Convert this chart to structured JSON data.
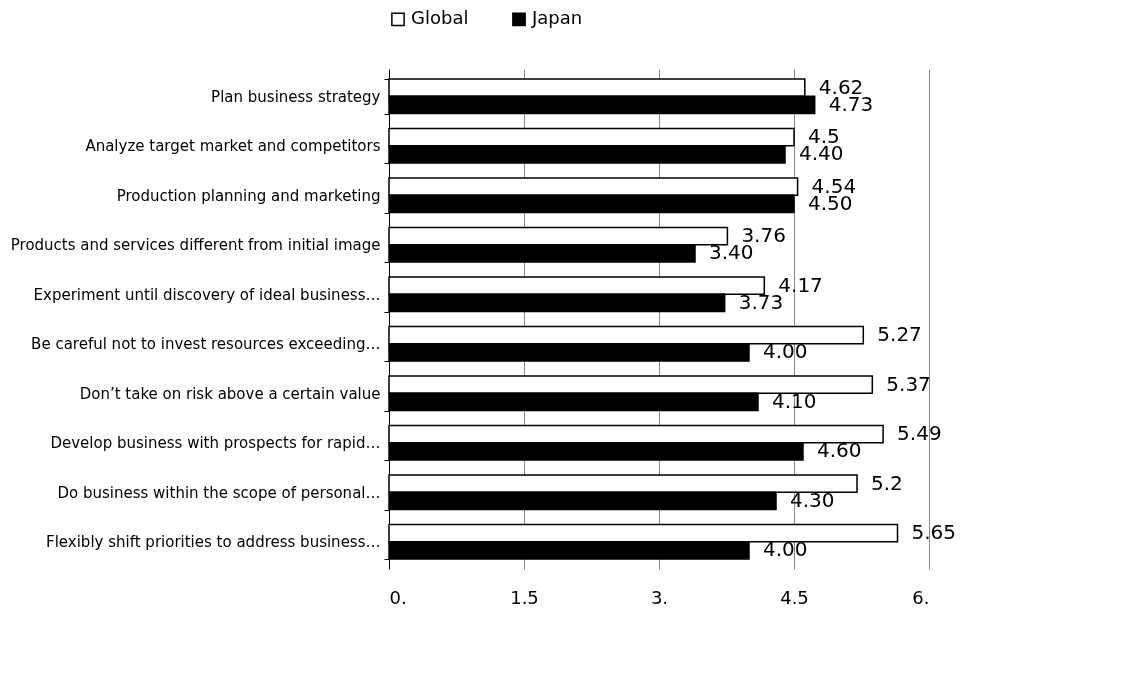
{
  "chart_data": {
    "type": "bar",
    "orientation": "horizontal",
    "categories": [
      "Plan business strategy",
      "Analyze target market and competitors",
      "Production planning and marketing",
      "Products and services different from initial image",
      "Experiment until discovery of ideal business…",
      "Be careful not to invest resources exceeding…",
      "Don’t take on risk above a certain value",
      "Develop business with prospects for rapid…",
      "Do business within the scope of personal…",
      "Flexibly shift priorities to address business…"
    ],
    "series": [
      {
        "name": "Global",
        "color": "#ffffff",
        "values": [
          4.62,
          4.5,
          4.54,
          3.76,
          4.17,
          5.27,
          5.37,
          5.49,
          5.2,
          5.65
        ],
        "value_labels": [
          "4.62",
          "4.5",
          "4.54",
          "3.76",
          "4.17",
          "5.27",
          "5.37",
          "5.49",
          "5.2",
          "5.65"
        ]
      },
      {
        "name": "Japan",
        "color": "#000000",
        "values": [
          4.73,
          4.4,
          4.5,
          3.4,
          3.73,
          4.0,
          4.1,
          4.6,
          4.3,
          4.0
        ],
        "value_labels": [
          "4.73",
          "4.40",
          "4.50",
          "3.40",
          "3.73",
          "4.00",
          "4.10",
          "4.60",
          "4.30",
          "4.00"
        ]
      }
    ],
    "xlim": [
      0,
      6
    ],
    "xticks": [
      {
        "value": 0,
        "label": "0."
      },
      1.5,
      {
        "value": 3,
        "label": "3."
      },
      4.5,
      {
        "value": 6,
        "label": "6."
      }
    ],
    "grid": "x",
    "legend": "top"
  }
}
